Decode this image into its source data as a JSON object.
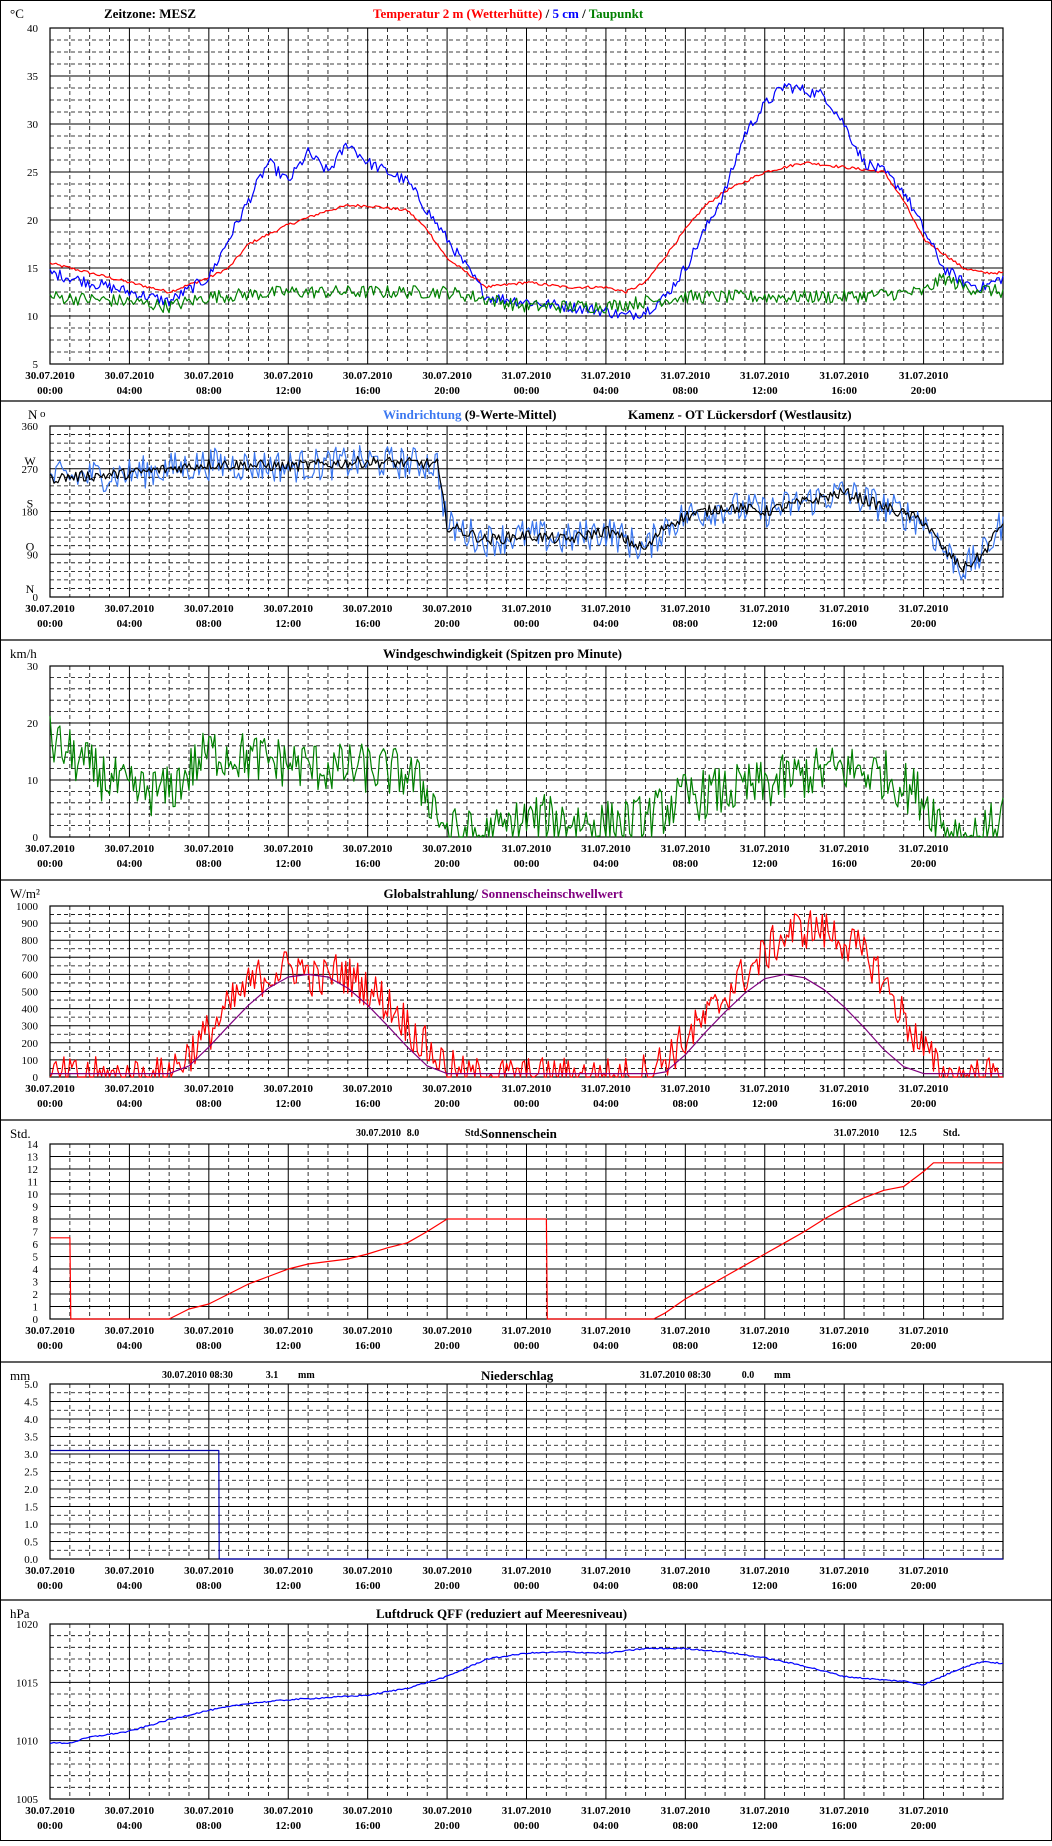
{
  "x_ticks": [
    {
      "date": "30.07.2010",
      "time": "00:00"
    },
    {
      "date": "30.07.2010",
      "time": "04:00"
    },
    {
      "date": "30.07.2010",
      "time": "08:00"
    },
    {
      "date": "30.07.2010",
      "time": "12:00"
    },
    {
      "date": "30.07.2010",
      "time": "16:00"
    },
    {
      "date": "30.07.2010",
      "time": "20:00"
    },
    {
      "date": "31.07.2010",
      "time": "00:00"
    },
    {
      "date": "31.07.2010",
      "time": "04:00"
    },
    {
      "date": "31.07.2010",
      "time": "08:00"
    },
    {
      "date": "31.07.2010",
      "time": "12:00"
    },
    {
      "date": "31.07.2010",
      "time": "16:00"
    },
    {
      "date": "31.07.2010",
      "time": "20:00"
    }
  ],
  "colors": {
    "red": "#ff0000",
    "blue": "#0000ff",
    "green": "#008000",
    "lightblue": "#3c78f0",
    "black": "#000000",
    "purple": "#800080",
    "darkblue": "#0000aa"
  },
  "chart_data": [
    {
      "id": "temp",
      "type": "line",
      "unit": "°C",
      "ylim": [
        5,
        40
      ],
      "yticks": [
        5,
        10,
        15,
        20,
        25,
        30,
        35,
        40
      ],
      "title_parts": [
        {
          "text": "Temperatur 2 m (Wetterhütte)",
          "color": "#ff0000"
        },
        {
          "text": "/",
          "color": "#000000"
        },
        {
          "text": "5 cm",
          "color": "#0000ff"
        },
        {
          "text": "/",
          "color": "#000000"
        },
        {
          "text": "Taupunkt",
          "color": "#008000"
        }
      ],
      "header_left": "Zeitzone: MESZ",
      "series": [
        {
          "name": "Temperatur 2 m (Wetterhütte)",
          "color": "#ff0000",
          "noise": 0.15,
          "x": [
            0,
            2,
            4,
            6,
            8,
            9,
            10,
            12,
            14,
            15,
            16,
            18,
            19,
            20,
            21,
            22,
            24,
            26,
            28,
            29,
            30,
            32,
            33,
            34,
            36,
            38,
            40,
            42,
            43,
            44,
            46,
            47,
            48
          ],
          "y": [
            15.5,
            14.5,
            13.5,
            12.5,
            14,
            15,
            17.5,
            19.5,
            21,
            21.5,
            21.5,
            21,
            19,
            16,
            14.5,
            13,
            13.5,
            13,
            13,
            12.5,
            13.5,
            19,
            21.5,
            23,
            25,
            26,
            25.5,
            25,
            22,
            18,
            15,
            14.5,
            14.5
          ]
        },
        {
          "name": "5 cm",
          "color": "#0000ff",
          "noise": 0.6,
          "x": [
            0,
            3,
            5,
            6,
            8,
            9,
            10,
            11,
            12,
            13,
            14,
            15,
            16,
            17,
            18,
            19,
            20,
            21,
            22,
            24,
            26,
            28,
            29,
            30,
            31,
            32,
            33,
            34,
            35,
            36,
            37,
            38,
            39,
            40,
            41,
            42,
            43,
            44,
            45,
            46,
            47,
            48
          ],
          "y": [
            14.5,
            13,
            12,
            11.5,
            14,
            18,
            22,
            26,
            24,
            27,
            25,
            28,
            26,
            25,
            24,
            21,
            18,
            15,
            12,
            11.5,
            11,
            10.5,
            10,
            10.5,
            12,
            15,
            19,
            23,
            29,
            32,
            34,
            33.5,
            33,
            30,
            26,
            25,
            23,
            19,
            15,
            13.5,
            13,
            14
          ]
        },
        {
          "name": "Taupunkt",
          "color": "#008000",
          "noise": 0.7,
          "x": [
            0,
            4,
            6,
            8,
            12,
            16,
            20,
            24,
            28,
            30,
            32,
            36,
            40,
            44,
            45,
            46,
            48
          ],
          "y": [
            12,
            11.5,
            11,
            12,
            12.5,
            12.5,
            12.5,
            11,
            11,
            11.5,
            12,
            12,
            12,
            12.5,
            14,
            13,
            12.5
          ]
        }
      ]
    },
    {
      "id": "wind-dir",
      "type": "line",
      "unit": "N",
      "ylim": [
        0,
        360
      ],
      "yticks": [
        0,
        90,
        180,
        270,
        360
      ],
      "letters": [
        {
          "v": 0,
          "t": "N"
        },
        {
          "v": 90,
          "t": "O"
        },
        {
          "v": 180,
          "t": "S"
        },
        {
          "v": 270,
          "t": "W"
        },
        {
          "v": 360,
          "t": "N"
        }
      ],
      "unit_suffix": "o",
      "title_parts": [
        {
          "text": "Windrichtung",
          "color": "#3c78f0"
        },
        {
          "text": "(9-Werte-Mittel)",
          "color": "#000000"
        }
      ],
      "header_right": "Kamenz - OT Lückersdorf (Westlausitz)",
      "series": [
        {
          "name": "Windrichtung",
          "color": "#3c78f0",
          "noise": 35,
          "x": [
            0,
            4,
            8,
            12,
            16,
            19.5,
            20,
            22,
            24,
            26,
            28,
            30,
            31,
            32,
            34,
            36,
            38,
            40,
            42,
            44,
            45,
            46,
            47,
            48
          ],
          "y": [
            250,
            260,
            280,
            275,
            285,
            280,
            150,
            120,
            130,
            120,
            140,
            100,
            150,
            170,
            190,
            180,
            200,
            220,
            190,
            160,
            100,
            60,
            90,
            160
          ]
        },
        {
          "name": "9-Werte-Mittel",
          "color": "#000000",
          "noise": 12,
          "x": [
            0,
            4,
            8,
            12,
            16,
            19.5,
            20,
            22,
            24,
            26,
            28,
            30,
            31,
            32,
            34,
            36,
            38,
            40,
            42,
            44,
            45,
            46,
            47,
            48
          ],
          "y": [
            250,
            260,
            280,
            275,
            285,
            280,
            150,
            120,
            130,
            120,
            140,
            100,
            150,
            170,
            190,
            180,
            200,
            220,
            190,
            160,
            100,
            60,
            90,
            160
          ]
        }
      ]
    },
    {
      "id": "wind-speed",
      "type": "line",
      "unit": "km/h",
      "ylim": [
        0,
        30
      ],
      "yticks": [
        0,
        10,
        20,
        30
      ],
      "title_parts": [
        {
          "text": "Windgeschwindigkeit (Spitzen pro Minute)",
          "color": "#000000"
        }
      ],
      "series": [
        {
          "name": "Windgeschwindigkeit",
          "color": "#008000",
          "noise": 4.5,
          "clip0": true,
          "x": [
            0,
            2,
            4,
            6,
            8,
            10,
            12,
            14,
            16,
            18,
            19,
            20,
            22,
            24,
            26,
            28,
            30,
            32,
            34,
            36,
            38,
            40,
            42,
            44,
            45,
            46,
            47,
            48
          ],
          "y": [
            17,
            12,
            8,
            8,
            15,
            14,
            13,
            12,
            12,
            11,
            8,
            1,
            0,
            3,
            3,
            2,
            3,
            7,
            8,
            9,
            11,
            12,
            11,
            7,
            2,
            0,
            0,
            4
          ]
        }
      ]
    },
    {
      "id": "radiation",
      "type": "line",
      "unit": "W/m²",
      "ylim": [
        0,
        1000
      ],
      "yticks": [
        0,
        100,
        200,
        300,
        400,
        500,
        600,
        700,
        800,
        900,
        1000
      ],
      "title_parts": [
        {
          "text": "Globalstrahlung/",
          "color": "#000000"
        },
        {
          "text": "Sonnenscheinschwellwert",
          "color": "#800080"
        }
      ],
      "series": [
        {
          "name": "Globalstrahlung",
          "color": "#ff0000",
          "noise": 120,
          "clip0": true,
          "x": [
            0,
            5.5,
            6.5,
            7.5,
            8.5,
            9.5,
            10.5,
            11.5,
            12.5,
            13.5,
            14.5,
            15.5,
            16.5,
            17.5,
            18.5,
            19.5,
            20.5,
            21,
            29.5,
            30.5,
            31.5,
            32.5,
            33.5,
            34.5,
            35.5,
            36.5,
            37.5,
            38.5,
            39.5,
            40.5,
            41.5,
            42.5,
            43.5,
            44.5,
            45,
            48
          ],
          "y": [
            0,
            0,
            80,
            200,
            330,
            480,
            580,
            620,
            650,
            560,
            620,
            560,
            480,
            380,
            230,
            110,
            20,
            0,
            0,
            60,
            160,
            280,
            400,
            550,
            650,
            780,
            860,
            870,
            830,
            760,
            660,
            450,
            250,
            80,
            0,
            0
          ]
        },
        {
          "name": "Sonnenscheinschwellwert",
          "color": "#800080",
          "noise": 0,
          "x": [
            0,
            5.6,
            6,
            7,
            8,
            9,
            10,
            11,
            12,
            13,
            14,
            15,
            16,
            17,
            18,
            19,
            20,
            20.4,
            30,
            30.5,
            31,
            32,
            33,
            34,
            35,
            36,
            37,
            38,
            39,
            40,
            41,
            42,
            43,
            44,
            44.6,
            48
          ],
          "y": [
            20,
            20,
            20,
            65,
            175,
            300,
            420,
            520,
            585,
            600,
            585,
            520,
            420,
            300,
            175,
            65,
            20,
            20,
            20,
            20,
            30,
            130,
            260,
            380,
            490,
            575,
            600,
            580,
            510,
            410,
            290,
            160,
            60,
            20,
            20,
            20
          ]
        }
      ]
    },
    {
      "id": "sunshine",
      "type": "line",
      "unit": "Std.",
      "ylim": [
        0,
        14
      ],
      "yticks": [
        0,
        1,
        2,
        3,
        4,
        5,
        6,
        7,
        8,
        9,
        10,
        11,
        12,
        13,
        14
      ],
      "title_parts": [
        {
          "text": "Sonnenschein",
          "color": "#000000"
        }
      ],
      "annotations": [
        {
          "date": "30.07.2010",
          "value": "8.0",
          "unit": "Std."
        },
        {
          "date": "31.07.2010",
          "value": "12.5",
          "unit": "Std."
        }
      ],
      "series": [
        {
          "name": "Sonnenschein",
          "color": "#ff0000",
          "noise": 0,
          "x": [
            0,
            1,
            1.05,
            6,
            7,
            8,
            9,
            10,
            11,
            12,
            13,
            14,
            15,
            16,
            17,
            18,
            19,
            20,
            20.5,
            25,
            25.05,
            30.4,
            31,
            32,
            33,
            34,
            35,
            36,
            37,
            38,
            39,
            40,
            41,
            42,
            43,
            44,
            44.5,
            48
          ],
          "y": [
            6.5,
            6.5,
            0,
            0,
            0.8,
            1.2,
            2,
            2.8,
            3.4,
            4,
            4.4,
            4.6,
            4.8,
            5.2,
            5.7,
            6.1,
            7,
            8,
            8,
            8,
            0,
            0,
            0.5,
            1.6,
            2.5,
            3.4,
            4.3,
            5.2,
            6.1,
            7,
            8,
            8.9,
            9.7,
            10.3,
            10.6,
            11.8,
            12.5,
            12.5
          ]
        }
      ]
    },
    {
      "id": "precip",
      "type": "line",
      "unit": "mm",
      "ylim": [
        0,
        5
      ],
      "yticks": [
        0,
        0.5,
        1,
        1.5,
        2,
        2.5,
        3,
        3.5,
        4,
        4.5,
        5
      ],
      "title_parts": [
        {
          "text": "Niederschlag",
          "color": "#000000"
        }
      ],
      "annotations": [
        {
          "date": "30.07.2010 08:30",
          "value": "3.1",
          "unit": "mm"
        },
        {
          "date": "31.07.2010 08:30",
          "value": "0.0",
          "unit": "mm"
        }
      ],
      "series": [
        {
          "name": "Niederschlag",
          "color": "#0000aa",
          "noise": 0,
          "x": [
            0,
            8.5,
            8.52,
            48
          ],
          "y": [
            3.1,
            3.1,
            0,
            0
          ]
        }
      ]
    },
    {
      "id": "pressure",
      "type": "line",
      "unit": "hPa",
      "ylim": [
        1005,
        1020
      ],
      "yticks": [
        1005,
        1010,
        1015,
        1020
      ],
      "title_parts": [
        {
          "text": "Luftdruck QFF (reduziert auf Meeresniveau)",
          "color": "#000000"
        }
      ],
      "series": [
        {
          "name": "Luftdruck",
          "color": "#0000ff",
          "noise": 0.06,
          "x": [
            0,
            1,
            2,
            4,
            6,
            8,
            10,
            12,
            14,
            16,
            18,
            20,
            22,
            24,
            26,
            28,
            30,
            32,
            34,
            36,
            38,
            40,
            42,
            43,
            44,
            46,
            47,
            48
          ],
          "y": [
            1009.8,
            1009.8,
            1010.3,
            1010.8,
            1011.8,
            1012.6,
            1013.2,
            1013.5,
            1013.7,
            1013.9,
            1014.5,
            1015.5,
            1017,
            1017.5,
            1017.6,
            1017.5,
            1017.9,
            1017.9,
            1017.6,
            1017.1,
            1016.4,
            1015.5,
            1015.2,
            1015.1,
            1014.8,
            1016.3,
            1016.8,
            1016.6
          ]
        }
      ]
    }
  ]
}
